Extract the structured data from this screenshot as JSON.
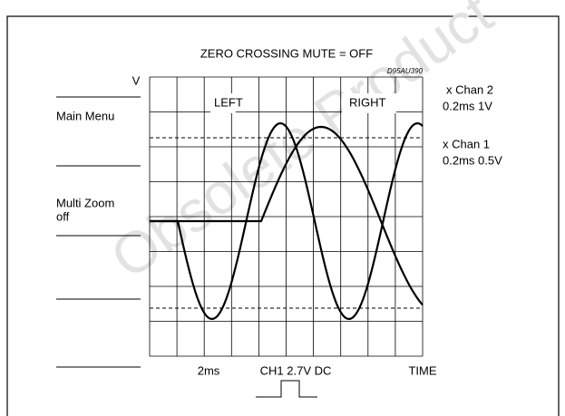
{
  "figure": {
    "title": "ZERO CROSSING MUTE = OFF",
    "y_label": "V",
    "figure_id": "D95AU390",
    "left_label": "LEFT",
    "right_label": "RIGHT",
    "channels": [
      {
        "name": "x Chan 2",
        "setting": "0.2ms 1V"
      },
      {
        "name": "x Chan 1",
        "setting": "0.2ms 0.5V"
      }
    ],
    "menu": [
      "Main Menu",
      "Multi Zoom",
      "off"
    ],
    "timebase": "2ms",
    "trigger": "CH1 2.7V DC",
    "x_label": "TIME",
    "watermark": "Obsolete Product"
  }
}
